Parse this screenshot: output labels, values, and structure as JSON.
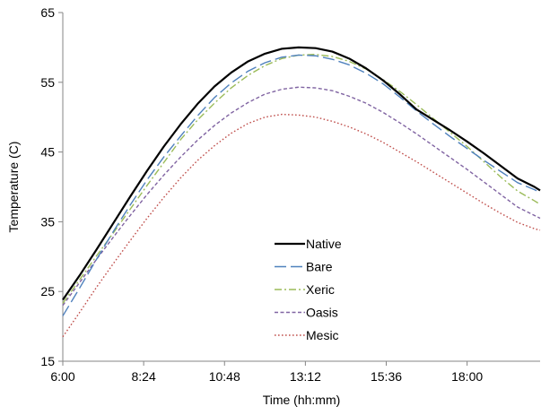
{
  "chart_data": {
    "type": "line",
    "title": "",
    "xlabel": "Time (hh:mm)",
    "ylabel": "Temperature (C)",
    "xlim": [
      "6:00",
      "20:10"
    ],
    "ylim": [
      15,
      65
    ],
    "x_ticks": [
      "6:00",
      "8:24",
      "10:48",
      "13:12",
      "15:36",
      "18:00"
    ],
    "y_ticks": [
      15,
      25,
      35,
      45,
      55,
      65
    ],
    "grid": false,
    "legend_position": "center",
    "x": [
      "6:00",
      "6:30",
      "7:00",
      "7:30",
      "8:00",
      "8:30",
      "9:00",
      "9:30",
      "10:00",
      "10:30",
      "11:00",
      "11:30",
      "12:00",
      "12:30",
      "13:00",
      "13:30",
      "14:00",
      "14:30",
      "15:00",
      "15:30",
      "16:00",
      "16:30",
      "17:00",
      "17:30",
      "18:00",
      "18:30",
      "19:00",
      "19:30",
      "20:00",
      "20:10"
    ],
    "series": [
      {
        "name": "Native",
        "color": "#000000",
        "dash": "solid",
        "values": [
          23.8,
          27.3,
          31.0,
          34.8,
          38.6,
          42.3,
          45.8,
          49.0,
          51.9,
          54.4,
          56.4,
          58.0,
          59.1,
          59.8,
          60.0,
          59.9,
          59.4,
          58.4,
          57.0,
          55.3,
          53.3,
          51.1,
          49.6,
          48.1,
          46.5,
          44.8,
          43.0,
          41.2,
          40.0,
          39.5
        ]
      },
      {
        "name": "Bare",
        "color": "#4f81bd",
        "dash": "long-dash",
        "values": [
          21.5,
          25.5,
          29.6,
          33.6,
          37.4,
          41.0,
          44.3,
          47.3,
          50.2,
          52.8,
          54.9,
          56.6,
          57.8,
          58.6,
          58.9,
          58.8,
          58.3,
          57.5,
          56.3,
          54.8,
          52.9,
          50.9,
          49.0,
          47.2,
          45.5,
          43.8,
          42.2,
          40.6,
          39.6,
          39.2
        ]
      },
      {
        "name": "Xeric",
        "color": "#9bbb59",
        "dash": "dash-dot",
        "values": [
          23.3,
          26.7,
          30.1,
          33.4,
          36.8,
          40.2,
          43.5,
          46.8,
          49.6,
          52.0,
          54.2,
          56.0,
          57.4,
          58.4,
          58.9,
          59.0,
          58.7,
          58.0,
          56.9,
          55.4,
          53.7,
          51.8,
          49.8,
          47.8,
          45.8,
          43.6,
          41.4,
          39.4,
          38.0,
          37.5
        ]
      },
      {
        "name": "Oasis",
        "color": "#8064a2",
        "dash": "short-dash",
        "values": [
          23.0,
          26.3,
          29.6,
          32.8,
          35.9,
          38.9,
          41.7,
          44.3,
          46.7,
          48.8,
          50.6,
          52.1,
          53.3,
          54.0,
          54.3,
          54.2,
          53.8,
          53.0,
          52.0,
          50.7,
          49.2,
          47.6,
          45.9,
          44.2,
          42.5,
          40.7,
          38.9,
          37.1,
          35.9,
          35.5
        ]
      },
      {
        "name": "Mesic",
        "color": "#c0504d",
        "dash": "dotted",
        "values": [
          18.5,
          22.0,
          25.6,
          29.0,
          32.3,
          35.5,
          38.5,
          41.3,
          43.8,
          45.9,
          47.7,
          49.1,
          50.0,
          50.4,
          50.3,
          50.0,
          49.4,
          48.6,
          47.6,
          46.4,
          45.0,
          43.6,
          42.1,
          40.6,
          39.1,
          37.6,
          36.2,
          34.9,
          34.0,
          33.8
        ]
      }
    ]
  }
}
